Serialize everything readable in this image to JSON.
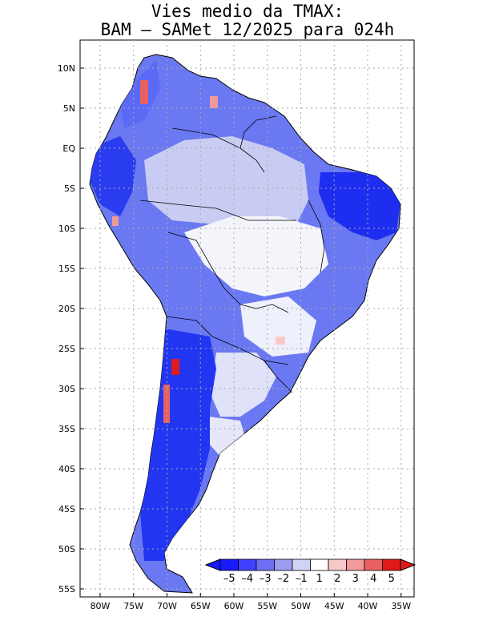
{
  "title": {
    "line1": "Vies medio da TMAX:",
    "line2": "BAM – SAMet 12/2025  para 024h"
  },
  "axes": {
    "lat_labels": [
      "10N",
      "5N",
      "EQ",
      "5S",
      "10S",
      "15S",
      "20S",
      "25S",
      "30S",
      "35S",
      "40S",
      "45S",
      "50S",
      "55S"
    ],
    "lon_labels": [
      "80W",
      "75W",
      "70W",
      "65W",
      "60W",
      "55W",
      "50W",
      "45W",
      "40W",
      "35W"
    ],
    "grid": true
  },
  "colorbar": {
    "labels": [
      "–5",
      "–4",
      "–3",
      "–2",
      "–1",
      "1",
      "2",
      "3",
      "4",
      "5"
    ],
    "colors": [
      "#1a1aff",
      "#4040ff",
      "#6e6ef5",
      "#9c9cf0",
      "#d2d2f5",
      "#ffffff",
      "#f8c8c8",
      "#f09a9a",
      "#e86060",
      "#e01a1a"
    ],
    "extend": "both"
  },
  "colors": {
    "strong_blue": "#1e2ef0",
    "mid_blue": "#5a6af5",
    "light_blue": "#c8ccf2",
    "red": "#e01a1a"
  }
}
